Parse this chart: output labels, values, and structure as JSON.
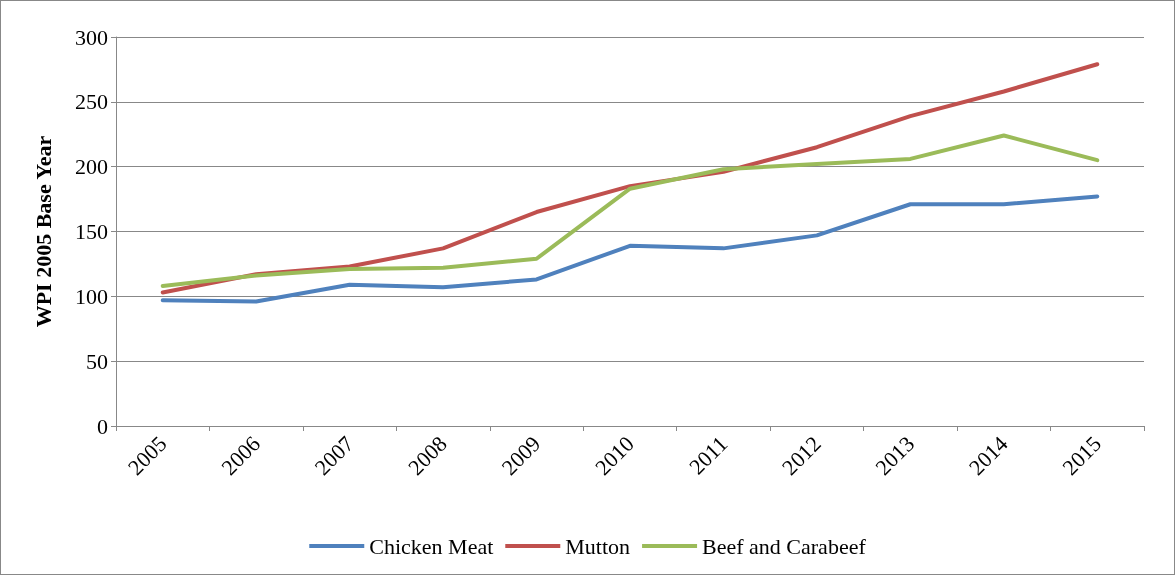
{
  "chart_data": {
    "type": "line",
    "ylabel": "WPI 2005 Base Year",
    "categories": [
      "2005",
      "2006",
      "2007",
      "2008",
      "2009",
      "2010",
      "2011",
      "2012",
      "2013",
      "2014",
      "2015"
    ],
    "series": [
      {
        "name": "Chicken Meat",
        "color": "#4f81bd",
        "values": [
          97,
          96,
          109,
          107,
          113,
          139,
          137,
          147,
          171,
          171,
          177
        ]
      },
      {
        "name": "Mutton",
        "color": "#c0504d",
        "values": [
          103,
          117,
          123,
          137,
          165,
          185,
          196,
          215,
          239,
          258,
          279
        ]
      },
      {
        "name": "Beef and Carabeef",
        "color": "#9bbb59",
        "values": [
          108,
          116,
          121,
          122,
          129,
          183,
          198,
          202,
          206,
          224,
          205
        ]
      }
    ],
    "ylim": [
      0,
      300
    ],
    "yticks": [
      0,
      50,
      100,
      150,
      200,
      250,
      300
    ],
    "grid": "y",
    "legend": "bottom",
    "marker": "none",
    "line_style": "solid"
  }
}
